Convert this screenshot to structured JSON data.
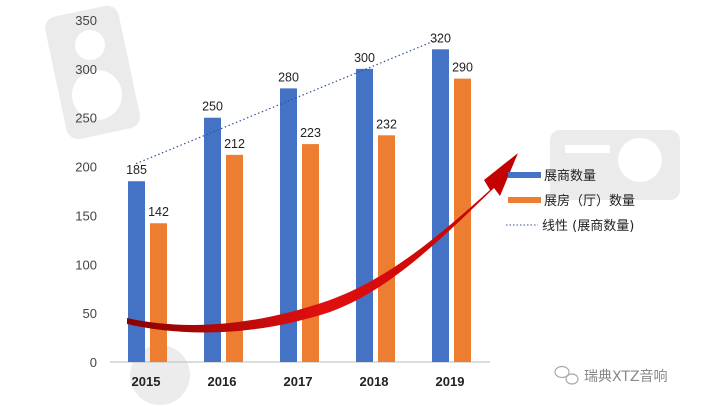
{
  "chart_data": {
    "type": "bar",
    "categories": [
      "2015",
      "2016",
      "2017",
      "2018",
      "2019"
    ],
    "series": [
      {
        "name": "展商数量",
        "values": [
          185,
          250,
          280,
          300,
          320
        ],
        "color": "#4472C4"
      },
      {
        "name": "展房（厅）数量",
        "values": [
          142,
          212,
          223,
          232,
          290
        ],
        "color": "#ED7D31"
      }
    ],
    "trendline": {
      "name": "线性 (展商数量)",
      "style": "dotted",
      "color": "#2F5597"
    },
    "ylim": [
      0,
      350
    ],
    "yticks": [
      0,
      50,
      100,
      150,
      200,
      250,
      300,
      350
    ],
    "grid": false,
    "legend": "right",
    "title": "",
    "xlabel": "",
    "ylabel": ""
  },
  "watermark": "瑞典XTZ音响"
}
